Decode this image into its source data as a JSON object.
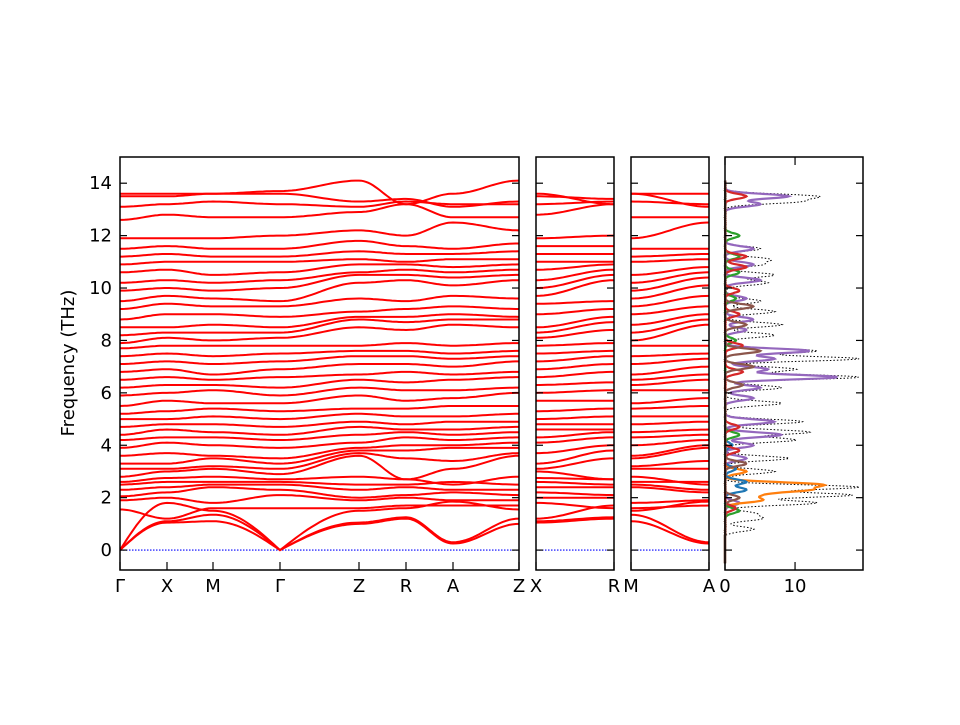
{
  "chart_data": {
    "type": "line",
    "title": "",
    "ylabel": "Frequency (THz)",
    "ylim": [
      -0.76,
      15.0
    ],
    "yticks": [
      0,
      2,
      4,
      6,
      8,
      10,
      12,
      14
    ],
    "band_color": "#ff0000",
    "zero_line_color": "#0000ff",
    "panels": [
      {
        "name": "main",
        "labels": [
          "Γ",
          "X",
          "M",
          "Γ",
          "Z",
          "R",
          "A",
          "Z"
        ],
        "k": [
          0,
          0.47,
          0.93,
          1.6,
          2.39,
          2.86,
          3.33,
          3.99
        ],
        "bands": [
          [
            0,
            1.05,
            1.1,
            0,
            1.0,
            1.2,
            0.25,
            1.0
          ],
          [
            0,
            1.1,
            1.35,
            0,
            1.05,
            1.25,
            0.3,
            1.2
          ],
          [
            0,
            1.8,
            1.5,
            0,
            1.5,
            1.6,
            1.85,
            1.55
          ],
          [
            1.55,
            1.2,
            1.6,
            1.6,
            1.6,
            1.7,
            1.7,
            1.7
          ],
          [
            1.9,
            2.0,
            1.8,
            2.1,
            1.9,
            2.0,
            1.9,
            1.9
          ],
          [
            2.05,
            2.2,
            2.4,
            2.3,
            2.0,
            2.1,
            2.2,
            2.1
          ],
          [
            2.3,
            2.4,
            2.5,
            2.5,
            2.3,
            2.4,
            2.3,
            2.3
          ],
          [
            2.5,
            2.6,
            2.6,
            2.6,
            2.5,
            2.5,
            2.6,
            2.5
          ],
          [
            2.6,
            2.75,
            2.8,
            2.7,
            2.8,
            2.7,
            2.5,
            2.8
          ],
          [
            2.8,
            3.0,
            3.1,
            2.9,
            3.6,
            2.7,
            3.1,
            3.6
          ],
          [
            3.1,
            3.1,
            3.2,
            3.1,
            3.7,
            3.5,
            3.4,
            3.7
          ],
          [
            3.3,
            3.3,
            3.5,
            3.3,
            3.8,
            3.8,
            3.9,
            3.9
          ],
          [
            3.6,
            3.7,
            3.6,
            3.5,
            3.9,
            4.0,
            4.0,
            4.1
          ],
          [
            3.9,
            4.1,
            4.0,
            3.9,
            4.1,
            4.3,
            4.2,
            4.3
          ],
          [
            4.2,
            4.3,
            4.3,
            4.2,
            4.4,
            4.5,
            4.4,
            4.5
          ],
          [
            4.4,
            4.6,
            4.5,
            4.4,
            4.7,
            4.6,
            4.6,
            4.7
          ],
          [
            4.7,
            4.8,
            4.8,
            4.7,
            4.9,
            4.8,
            4.9,
            4.9
          ],
          [
            5.0,
            5.0,
            5.1,
            5.0,
            5.2,
            5.1,
            5.1,
            5.2
          ],
          [
            5.2,
            5.3,
            5.4,
            5.3,
            5.4,
            5.4,
            5.5,
            5.5
          ],
          [
            5.5,
            5.7,
            5.6,
            5.6,
            5.9,
            5.7,
            5.8,
            6.0
          ],
          [
            5.9,
            6.0,
            6.1,
            5.9,
            6.2,
            6.1,
            6.1,
            6.2
          ],
          [
            6.2,
            6.3,
            6.3,
            6.2,
            6.5,
            6.4,
            6.5,
            6.6
          ],
          [
            6.5,
            6.6,
            6.5,
            6.6,
            6.7,
            6.8,
            6.7,
            6.8
          ],
          [
            6.8,
            6.9,
            6.7,
            6.9,
            7.1,
            7.1,
            7.0,
            7.2
          ],
          [
            7.1,
            7.2,
            7.1,
            7.2,
            7.4,
            7.4,
            7.3,
            7.4
          ],
          [
            7.4,
            7.5,
            7.4,
            7.5,
            7.6,
            7.6,
            7.5,
            7.6
          ],
          [
            7.7,
            7.8,
            7.8,
            7.8,
            7.8,
            7.9,
            7.8,
            7.9
          ],
          [
            7.9,
            8.1,
            8.0,
            8.1,
            8.5,
            8.4,
            8.6,
            8.5
          ],
          [
            8.2,
            8.3,
            8.3,
            8.3,
            8.8,
            8.7,
            8.8,
            8.8
          ],
          [
            8.5,
            8.5,
            8.6,
            8.5,
            8.9,
            8.9,
            9.0,
            8.9
          ],
          [
            8.8,
            9.0,
            9.0,
            8.9,
            9.1,
            9.2,
            9.3,
            9.2
          ],
          [
            9.2,
            9.4,
            9.3,
            9.3,
            9.6,
            9.5,
            9.7,
            9.6
          ],
          [
            9.5,
            9.7,
            9.6,
            9.5,
            10.2,
            10.3,
            10.1,
            10.3
          ],
          [
            9.9,
            10.0,
            9.9,
            10.0,
            10.5,
            10.5,
            10.4,
            10.5
          ],
          [
            10.2,
            10.3,
            10.2,
            10.3,
            10.6,
            10.7,
            10.6,
            10.7
          ],
          [
            10.6,
            10.7,
            10.5,
            10.6,
            10.9,
            10.9,
            10.8,
            10.9
          ],
          [
            10.9,
            11.0,
            11.0,
            11.0,
            11.1,
            11.0,
            11.1,
            11.1
          ],
          [
            11.2,
            11.3,
            11.2,
            11.2,
            11.4,
            11.3,
            11.3,
            11.4
          ],
          [
            11.5,
            11.6,
            11.5,
            11.5,
            11.8,
            11.6,
            11.5,
            11.7
          ],
          [
            11.9,
            11.9,
            11.9,
            12.0,
            12.2,
            12.0,
            12.5,
            12.2
          ],
          [
            12.6,
            12.8,
            12.7,
            12.7,
            12.9,
            13.2,
            12.7,
            12.7
          ],
          [
            13.1,
            13.2,
            13.3,
            13.2,
            13.1,
            13.3,
            13.2,
            13.2
          ],
          [
            13.5,
            13.5,
            13.6,
            13.6,
            13.3,
            13.4,
            13.1,
            13.3
          ],
          [
            13.6,
            13.6,
            13.6,
            13.7,
            14.1,
            13.2,
            13.6,
            14.1
          ]
        ]
      },
      {
        "name": "X-R",
        "labels": [
          "X",
          "R"
        ],
        "from_columns": [
          1,
          5
        ]
      },
      {
        "name": "M-A",
        "labels": [
          "M",
          "A"
        ],
        "from_columns": [
          2,
          6
        ]
      }
    ],
    "dos": {
      "xticks": [
        0,
        10
      ],
      "xlim": [
        0,
        19.7
      ],
      "peak_width": 0.09,
      "series": [
        {
          "name": "total",
          "color": "#000000",
          "style": "dotted",
          "peaks": [
            [
              13.5,
              12.5
            ],
            [
              13.3,
              10
            ],
            [
              11.5,
              5
            ],
            [
              11.1,
              6
            ],
            [
              10.5,
              7
            ],
            [
              10.9,
              5
            ],
            [
              10.2,
              6
            ],
            [
              9.5,
              5
            ],
            [
              9.1,
              7
            ],
            [
              8.6,
              8
            ],
            [
              8.2,
              7
            ],
            [
              7.6,
              13
            ],
            [
              7.3,
              19
            ],
            [
              6.9,
              10
            ],
            [
              6.6,
              19
            ],
            [
              6.2,
              8
            ],
            [
              5.6,
              8
            ],
            [
              4.9,
              11
            ],
            [
              4.5,
              12
            ],
            [
              4.2,
              10
            ],
            [
              3.5,
              9
            ],
            [
              3.0,
              7
            ],
            [
              2.4,
              19
            ],
            [
              2.1,
              18
            ],
            [
              1.8,
              13
            ],
            [
              1.4,
              4
            ],
            [
              1.2,
              5
            ],
            [
              0.8,
              4
            ]
          ]
        },
        {
          "name": "purple",
          "color": "#9467bd",
          "peaks": [
            [
              13.5,
              9
            ],
            [
              13.2,
              5
            ],
            [
              11.5,
              4
            ],
            [
              10.9,
              4
            ],
            [
              10.3,
              5
            ],
            [
              9.6,
              3
            ],
            [
              8.8,
              4
            ],
            [
              8.4,
              3
            ],
            [
              7.6,
              12
            ],
            [
              7.3,
              7
            ],
            [
              6.9,
              6
            ],
            [
              6.6,
              16
            ],
            [
              6.2,
              5
            ],
            [
              5.8,
              4
            ],
            [
              4.9,
              7
            ],
            [
              4.4,
              8
            ],
            [
              4.0,
              4
            ],
            [
              3.5,
              3
            ],
            [
              1.8,
              2
            ]
          ]
        },
        {
          "name": "orange",
          "color": "#ff7f0e",
          "peaks": [
            [
              2.5,
              13
            ],
            [
              2.3,
              11
            ],
            [
              2.1,
              4
            ],
            [
              1.9,
              5
            ],
            [
              3.0,
              3
            ]
          ]
        },
        {
          "name": "blue",
          "color": "#1f77b4",
          "peaks": [
            [
              2.3,
              3
            ],
            [
              2.6,
              3
            ],
            [
              3.1,
              1.5
            ],
            [
              4.0,
              1
            ]
          ]
        },
        {
          "name": "green",
          "color": "#2ca02c",
          "peaks": [
            [
              12.0,
              2
            ],
            [
              11.2,
              2
            ],
            [
              10.6,
              2
            ],
            [
              9.6,
              1.5
            ],
            [
              8.0,
              1.5
            ],
            [
              4.4,
              2
            ],
            [
              1.5,
              2
            ]
          ]
        },
        {
          "name": "red",
          "color": "#d62728",
          "peaks": [
            [
              13.5,
              3
            ],
            [
              11.2,
              3
            ],
            [
              10.8,
              3
            ],
            [
              9.9,
              2
            ],
            [
              9.0,
              2
            ],
            [
              7.8,
              2.5
            ],
            [
              6.8,
              2.5
            ],
            [
              4.7,
              2
            ],
            [
              3.8,
              2
            ],
            [
              1.6,
              1.5
            ]
          ]
        },
        {
          "name": "brown",
          "color": "#8c564b",
          "peaks": [
            [
              9.3,
              4
            ],
            [
              8.6,
              3
            ],
            [
              7.6,
              5
            ],
            [
              7.0,
              4
            ],
            [
              6.3,
              2.5
            ],
            [
              3.3,
              3
            ],
            [
              2.0,
              2
            ]
          ]
        }
      ]
    }
  }
}
